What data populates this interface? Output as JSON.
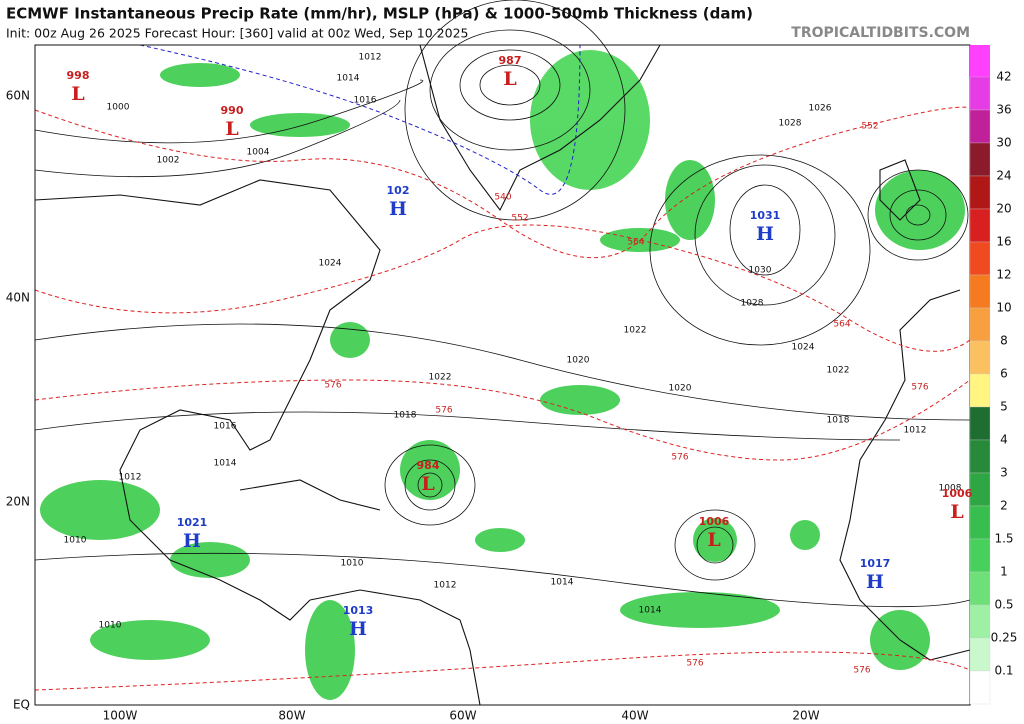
{
  "header": {
    "title": "ECMWF Instantaneous Precip Rate (mm/hr), MSLP (hPa) & 1000-500mb Thickness (dam)",
    "subtitle": "Init: 00z Aug 26 2025   Forecast Hour: [360]   valid at 00z Wed, Sep 10 2025",
    "credit": "TROPICALTIDBITS.COM"
  },
  "colorbar": {
    "labels": [
      42,
      36,
      30,
      24,
      20,
      16,
      12,
      10,
      8,
      6,
      5,
      4,
      3,
      2,
      1.5,
      1,
      0.5,
      0.25,
      0.1
    ]
  },
  "axes": {
    "lat_labels": [
      "60N",
      "40N",
      "20N",
      "EQ"
    ],
    "lon_labels": [
      "100W",
      "80W",
      "60W",
      "40W",
      "20W"
    ]
  },
  "pressure_centers": [
    {
      "letter": "L",
      "value": "998"
    },
    {
      "letter": "L",
      "value": "990"
    },
    {
      "letter": "H",
      "value": "102"
    },
    {
      "letter": "L",
      "value": "987"
    },
    {
      "letter": "H",
      "value": "1031"
    },
    {
      "letter": "L",
      "value": "984"
    },
    {
      "letter": "H",
      "value": "1021"
    },
    {
      "letter": "L",
      "value": "1006"
    },
    {
      "letter": "H",
      "value": "1017"
    },
    {
      "letter": "H",
      "value": "1013"
    },
    {
      "letter": "L",
      "value": "1006"
    }
  ],
  "isobar_labels": [
    "1012",
    "1014",
    "1016",
    "1000",
    "1002",
    "1004",
    "1024",
    "1028",
    "1026",
    "1020",
    "1022",
    "1018",
    "1022",
    "1020",
    "1016",
    "1014",
    "1012",
    "1010",
    "1008",
    "1014",
    "1012",
    "1010",
    "1030",
    "1028",
    "1024",
    "1022",
    "1018",
    "1012",
    "1014",
    "1010"
  ],
  "thickness_labels": [
    "552",
    "564",
    "576",
    "576",
    "576",
    "564",
    "552",
    "576",
    "576",
    "576",
    "540"
  ]
}
